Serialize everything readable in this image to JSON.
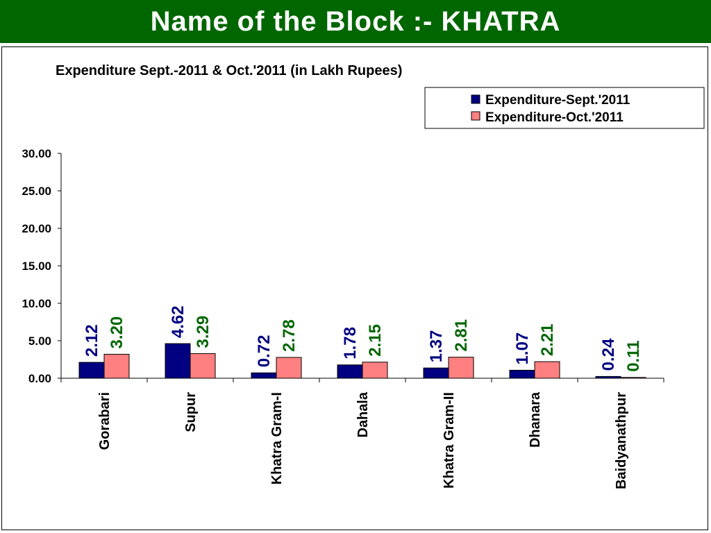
{
  "banner": {
    "title": "Name of the Block :- KHATRA"
  },
  "colors": {
    "banner_bg": "#006600",
    "series1": "#000080",
    "series2": "#FF8080",
    "label1": "#000080",
    "label2": "#006600"
  },
  "chart_data": {
    "type": "bar",
    "title": "Expenditure Sept.-2011 & Oct.'2011 (in Lakh Rupees)",
    "xlabel": "",
    "ylabel": "",
    "ylim": [
      0,
      30
    ],
    "yticks": [
      "0.00",
      "5.00",
      "10.00",
      "15.00",
      "20.00",
      "25.00",
      "30.00"
    ],
    "grid": false,
    "legend_position": "top-right",
    "categories": [
      "Gorabari",
      "Supur",
      "Khatra Gram-I",
      "Dahala",
      "Khatra Gram-II",
      "Dhanara",
      "Baidyanathpur"
    ],
    "series": [
      {
        "name": "Expenditure-Sept.'2011",
        "values": [
          2.12,
          4.62,
          0.72,
          1.78,
          1.37,
          1.07,
          0.24
        ],
        "labels": [
          "2.12",
          "4.62",
          "0.72",
          "1.78",
          "1.37",
          "1.07",
          "0.24"
        ]
      },
      {
        "name": "Expenditure-Oct.'2011",
        "values": [
          3.2,
          3.29,
          2.78,
          2.15,
          2.81,
          2.21,
          0.11
        ],
        "labels": [
          "3.20",
          "3.29",
          "2.78",
          "2.15",
          "2.81",
          "2.21",
          "0.11"
        ]
      }
    ]
  }
}
